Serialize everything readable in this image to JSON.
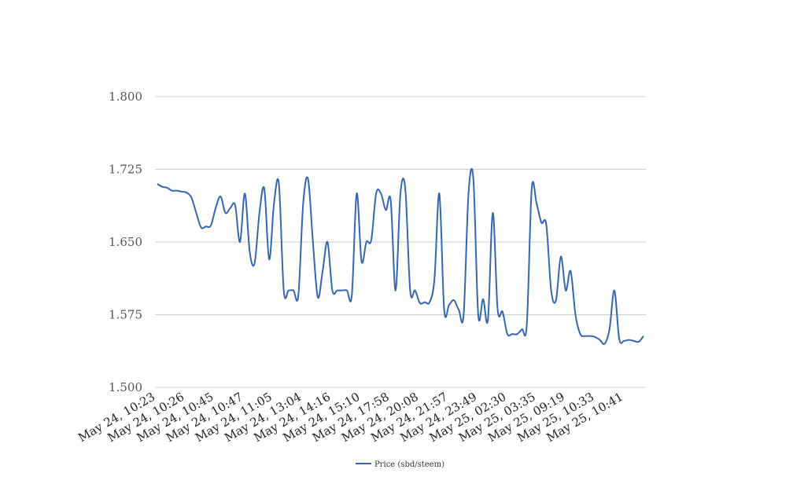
{
  "chart_data": {
    "type": "line",
    "title": "",
    "xlabel": "",
    "ylabel": "",
    "ylim": [
      1.5,
      1.8
    ],
    "y_ticks": [
      "1.500",
      "1.575",
      "1.650",
      "1.725",
      "1.800"
    ],
    "x_tick_labels": [
      "May 24, 10:23",
      "May 24, 10:26",
      "May 24, 10:45",
      "May 24, 10:47",
      "May 24, 11:05",
      "May 24, 13:04",
      "May 24, 14:16",
      "May 24, 15:10",
      "May 24, 17:58",
      "May 24, 20:08",
      "May 24, 21:57",
      "May 24, 23:49",
      "May 25, 02:30",
      "May 25, 03:35",
      "May 25, 09:19",
      "May 25, 10:33",
      "May 25, 10:41"
    ],
    "grid": true,
    "legend_position": "bottom",
    "series": [
      {
        "name": "Price (sbd/steem)",
        "color": "#3465b0",
        "values": [
          1.71,
          1.707,
          1.706,
          1.703,
          1.703,
          1.702,
          1.701,
          1.696,
          1.68,
          1.665,
          1.666,
          1.667,
          1.685,
          1.697,
          1.68,
          1.685,
          1.688,
          1.65,
          1.7,
          1.64,
          1.628,
          1.68,
          1.705,
          1.632,
          1.69,
          1.71,
          1.6,
          1.6,
          1.6,
          1.595,
          1.69,
          1.715,
          1.65,
          1.593,
          1.62,
          1.65,
          1.6,
          1.6,
          1.6,
          1.6,
          1.595,
          1.7,
          1.63,
          1.65,
          1.652,
          1.7,
          1.7,
          1.683,
          1.693,
          1.6,
          1.7,
          1.705,
          1.6,
          1.6,
          1.587,
          1.588,
          1.588,
          1.612,
          1.7,
          1.58,
          1.585,
          1.59,
          1.58,
          1.575,
          1.7,
          1.715,
          1.575,
          1.591,
          1.57,
          1.68,
          1.58,
          1.578,
          1.555,
          1.555,
          1.555,
          1.56,
          1.565,
          1.705,
          1.69,
          1.67,
          1.668,
          1.6,
          1.59,
          1.635,
          1.6,
          1.62,
          1.575,
          1.555,
          1.553,
          1.553,
          1.552,
          1.549,
          1.545,
          1.56,
          1.6,
          1.55,
          1.548,
          1.549,
          1.548,
          1.547,
          1.553
        ]
      }
    ]
  }
}
